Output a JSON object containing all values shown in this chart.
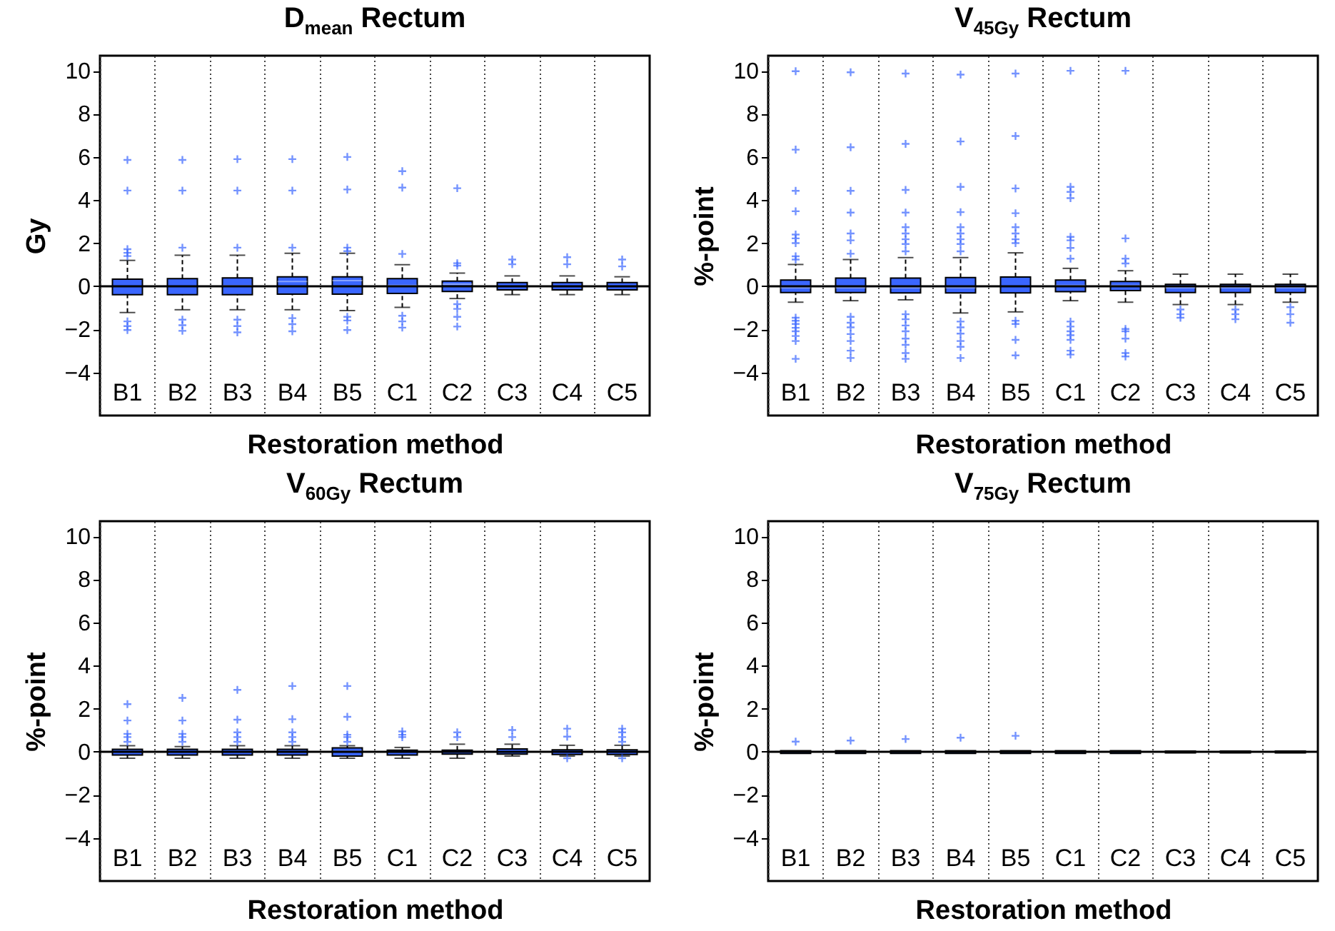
{
  "chart_data": [
    {
      "type": "box",
      "title": "D$_{mean}$ Rectum",
      "xlabel": "Restoration method",
      "ylabel": "Gy",
      "categories": [
        "B1",
        "B2",
        "B3",
        "B4",
        "B5",
        "C1",
        "C2",
        "C3",
        "C4",
        "C5"
      ],
      "ylim": [
        -6,
        10.7
      ],
      "yticks": [
        -4,
        -2,
        0,
        2,
        4,
        6,
        8,
        10
      ],
      "grid": "x",
      "marker": "cross",
      "ref_lines": [
        {
          "axis": "y",
          "value": 0
        }
      ],
      "series": [
        {
          "color": "#3a66ff",
          "boxes": [
            {
              "low": -1.22,
              "q1": -0.39,
              "median": 0,
              "q3": 0.33,
              "high": 1.2,
              "outliers": [
                5.86,
                4.44,
                1.72,
                1.55,
                1.4,
                -1.63,
                -1.85,
                -2.03
              ]
            },
            {
              "low": -1.09,
              "q1": -0.39,
              "median": 0,
              "q3": 0.35,
              "high": 1.44,
              "outliers": [
                5.86,
                4.44,
                1.79,
                -1.55,
                -1.81,
                -2.07
              ]
            },
            {
              "low": -1.09,
              "q1": -0.39,
              "median": 0.02,
              "q3": 0.39,
              "high": 1.44,
              "outliers": [
                5.9,
                4.44,
                1.79,
                -1.55,
                -1.85,
                -2.14
              ]
            },
            {
              "low": -1.09,
              "q1": -0.37,
              "median": 0.22,
              "q3": 0.44,
              "high": 1.53,
              "outliers": [
                5.9,
                4.44,
                1.79,
                -1.48,
                -1.76,
                -2.09
              ]
            },
            {
              "low": -1.13,
              "q1": -0.37,
              "median": 0.26,
              "q3": 0.44,
              "high": 1.53,
              "outliers": [
                6.0,
                4.49,
                1.79,
                1.63,
                -1.42,
                -1.59,
                -2.03
              ]
            },
            {
              "low": -0.98,
              "q1": -0.33,
              "median": 0.04,
              "q3": 0.35,
              "high": 1.0,
              "outliers": [
                5.34,
                4.58,
                1.5,
                -1.37,
                -1.63,
                -1.92
              ]
            },
            {
              "low": -0.57,
              "q1": -0.24,
              "median": 0.1,
              "q3": 0.24,
              "high": 0.61,
              "outliers": [
                4.55,
                1.07,
                0.96,
                -0.83,
                -1.05,
                -1.42,
                -1.87
              ]
            },
            {
              "low": -0.39,
              "q1": -0.17,
              "median": 0,
              "q3": 0.17,
              "high": 0.48,
              "outliers": [
                1.24,
                1.02
              ]
            },
            {
              "low": -0.39,
              "q1": -0.17,
              "median": 0,
              "q3": 0.17,
              "high": 0.48,
              "outliers": [
                1.35,
                1.02
              ]
            },
            {
              "low": -0.39,
              "q1": -0.17,
              "median": 0,
              "q3": 0.17,
              "high": 0.44,
              "outliers": [
                1.24,
                0.92
              ]
            }
          ]
        }
      ]
    },
    {
      "type": "box",
      "title": "V$_{45Gy}$ Rectum",
      "xlabel": "Restoration method",
      "ylabel": "%-point",
      "categories": [
        "B1",
        "B2",
        "B3",
        "B4",
        "B5",
        "C1",
        "C2",
        "C3",
        "C4",
        "C5"
      ],
      "ylim": [
        -6,
        10.7
      ],
      "yticks": [
        -4,
        -2,
        0,
        2,
        4,
        6,
        8,
        10
      ],
      "grid": "x",
      "marker": "cross",
      "ref_lines": [
        {
          "axis": "y",
          "value": 0
        }
      ],
      "series": [
        {
          "color": "#3a66ff",
          "boxes": [
            {
              "low": -0.74,
              "q1": -0.29,
              "median": -0.07,
              "q3": 0.29,
              "high": 1.01,
              "outliers": [
                9.98,
                6.34,
                4.43,
                3.48,
                2.4,
                2.22,
                2.0,
                1.39,
                1.24,
                -1.46,
                -1.6,
                -1.75,
                -1.93,
                -2.09,
                -2.31,
                -2.54,
                -3.37
              ]
            },
            {
              "low": -0.67,
              "q1": -0.29,
              "median": -0.07,
              "q3": 0.38,
              "high": 1.24,
              "outliers": [
                9.93,
                6.45,
                4.43,
                3.42,
                2.45,
                2.13,
                1.51,
                -1.42,
                -1.69,
                -1.91,
                -2.22,
                -2.54,
                -2.99,
                -3.33
              ]
            },
            {
              "low": -0.63,
              "q1": -0.31,
              "median": -0.07,
              "q3": 0.38,
              "high": 1.33,
              "outliers": [
                9.87,
                6.61,
                4.47,
                3.42,
                2.74,
                2.45,
                2.18,
                1.96,
                1.62,
                -1.3,
                -1.53,
                -1.82,
                -2.09,
                -2.43,
                -2.72,
                -3.1,
                -3.37
              ]
            },
            {
              "low": -1.24,
              "q1": -0.31,
              "median": -0.07,
              "q3": 0.4,
              "high": 1.33,
              "outliers": [
                9.82,
                6.72,
                4.61,
                3.44,
                2.74,
                2.45,
                2.18,
                1.96,
                1.62,
                -1.64,
                -1.91,
                -2.2,
                -2.54,
                -2.81,
                -3.33
              ]
            },
            {
              "low": -1.19,
              "q1": -0.31,
              "median": 0,
              "q3": 0.43,
              "high": 1.55,
              "outliers": [
                9.87,
                6.97,
                4.54,
                3.39,
                2.74,
                2.45,
                2.18,
                2.0,
                -1.6,
                -1.75,
                -2.49,
                -3.21
              ]
            },
            {
              "low": -0.67,
              "q1": -0.25,
              "median": 0.04,
              "q3": 0.29,
              "high": 0.83,
              "outliers": [
                10.0,
                4.61,
                4.38,
                4.09,
                2.29,
                2.13,
                1.78,
                1.28,
                -1.64,
                -1.87,
                -2.09,
                -2.27,
                -2.49,
                -2.99,
                -3.17
              ]
            },
            {
              "low": -0.74,
              "q1": -0.2,
              "median": 0.04,
              "q3": 0.22,
              "high": 0.72,
              "outliers": [
                10.0,
                2.22,
                1.28,
                1.06,
                -1.98,
                -2.09,
                -2.43,
                -3.1,
                -3.26
              ]
            },
            {
              "low": -0.85,
              "q1": -0.29,
              "median": -0.07,
              "q3": 0.09,
              "high": 0.56,
              "outliers": [
                -1.08,
                -1.3,
                -1.46
              ]
            },
            {
              "low": -0.85,
              "q1": -0.29,
              "median": -0.07,
              "q3": 0.09,
              "high": 0.56,
              "outliers": [
                -1.08,
                -1.3,
                -1.53
              ]
            },
            {
              "low": -0.74,
              "q1": -0.29,
              "median": -0.07,
              "q3": 0.09,
              "high": 0.56,
              "outliers": [
                -0.97,
                -1.3,
                -1.69
              ]
            }
          ]
        }
      ]
    },
    {
      "type": "box",
      "title": "V$_{60Gy}$ Rectum",
      "xlabel": "Restoration method",
      "ylabel": "%-point",
      "categories": [
        "B1",
        "B2",
        "B3",
        "B4",
        "B5",
        "C1",
        "C2",
        "C3",
        "C4",
        "C5"
      ],
      "ylim": [
        -6,
        10.7
      ],
      "yticks": [
        -4,
        -2,
        0,
        2,
        4,
        6,
        8,
        10
      ],
      "grid": "x",
      "marker": "cross",
      "ref_lines": [
        {
          "axis": "y",
          "value": 0
        }
      ],
      "series": [
        {
          "color": "#3a66ff",
          "boxes": [
            {
              "low": -0.3,
              "q1": -0.15,
              "median": 0,
              "q3": 0.11,
              "high": 0.28,
              "outliers": [
                2.21,
                1.45,
                0.83,
                0.68,
                0.46
              ]
            },
            {
              "low": -0.3,
              "q1": -0.15,
              "median": 0,
              "q3": 0.11,
              "high": 0.24,
              "outliers": [
                2.5,
                1.45,
                0.83,
                0.68,
                0.46
              ]
            },
            {
              "low": -0.3,
              "q1": -0.15,
              "median": 0,
              "q3": 0.11,
              "high": 0.28,
              "outliers": [
                2.87,
                1.49,
                0.9,
                0.68,
                0.46
              ]
            },
            {
              "low": -0.3,
              "q1": -0.15,
              "median": 0,
              "q3": 0.11,
              "high": 0.28,
              "outliers": [
                3.05,
                1.51,
                0.9,
                0.68,
                0.46
              ]
            },
            {
              "low": -0.3,
              "q1": -0.2,
              "median": 0.02,
              "q3": 0.18,
              "high": 0.28,
              "outliers": [
                3.05,
                1.62,
                0.79,
                0.68,
                0.46
              ]
            },
            {
              "low": -0.3,
              "q1": -0.15,
              "median": 0,
              "q3": 0.07,
              "high": 0.2,
              "outliers": [
                0.94,
                0.79,
                0.68
              ]
            },
            {
              "low": -0.3,
              "q1": -0.11,
              "median": 0,
              "q3": 0.07,
              "high": 0.35,
              "outliers": [
                0.9,
                0.68
              ]
            },
            {
              "low": -0.2,
              "q1": -0.11,
              "median": 0,
              "q3": 0.13,
              "high": 0.35,
              "outliers": [
                1.01,
                0.68
              ]
            },
            {
              "low": -0.2,
              "q1": -0.13,
              "median": 0,
              "q3": 0.09,
              "high": 0.3,
              "outliers": [
                1.07,
                0.7,
                -0.3
              ]
            },
            {
              "low": -0.2,
              "q1": -0.13,
              "median": 0,
              "q3": 0.09,
              "high": 0.3,
              "outliers": [
                1.07,
                0.9,
                0.68,
                0.46,
                -0.3
              ]
            }
          ]
        }
      ]
    },
    {
      "type": "box",
      "title": "V$_{75Gy}$ Rectum",
      "xlabel": "Restoration method",
      "ylabel": "%-point",
      "categories": [
        "B1",
        "B2",
        "B3",
        "B4",
        "B5",
        "C1",
        "C2",
        "C3",
        "C4",
        "C5"
      ],
      "ylim": [
        -6,
        10.7
      ],
      "yticks": [
        -4,
        -2,
        0,
        2,
        4,
        6,
        8,
        10
      ],
      "grid": "x",
      "marker": "cross",
      "ref_lines": [
        {
          "axis": "y",
          "value": 0
        }
      ],
      "series": [
        {
          "color": "#3a66ff",
          "boxes": [
            {
              "low": -0.08,
              "q1": -0.08,
              "median": 0,
              "q3": 0.05,
              "high": 0.05,
              "outliers": [
                0.47
              ]
            },
            {
              "low": -0.08,
              "q1": -0.08,
              "median": 0,
              "q3": 0.05,
              "high": 0.05,
              "outliers": [
                0.52
              ]
            },
            {
              "low": -0.08,
              "q1": -0.08,
              "median": 0,
              "q3": 0.05,
              "high": 0.05,
              "outliers": [
                0.59
              ]
            },
            {
              "low": -0.08,
              "q1": -0.08,
              "median": 0,
              "q3": 0.05,
              "high": 0.05,
              "outliers": [
                0.65
              ]
            },
            {
              "low": -0.08,
              "q1": -0.08,
              "median": 0,
              "q3": 0.05,
              "high": 0.05,
              "outliers": [
                0.74
              ]
            },
            {
              "low": -0.08,
              "q1": -0.08,
              "median": 0,
              "q3": 0.05,
              "high": 0.05
            },
            {
              "low": -0.08,
              "q1": -0.08,
              "median": 0,
              "q3": 0.05,
              "high": 0.05
            },
            {
              "low": -0.05,
              "q1": -0.05,
              "median": 0,
              "q3": 0.03,
              "high": 0.03
            },
            {
              "low": -0.05,
              "q1": -0.05,
              "median": 0,
              "q3": 0.03,
              "high": 0.03
            },
            {
              "low": -0.05,
              "q1": -0.05,
              "median": 0,
              "q3": 0.03,
              "high": 0.03
            }
          ]
        }
      ]
    }
  ]
}
